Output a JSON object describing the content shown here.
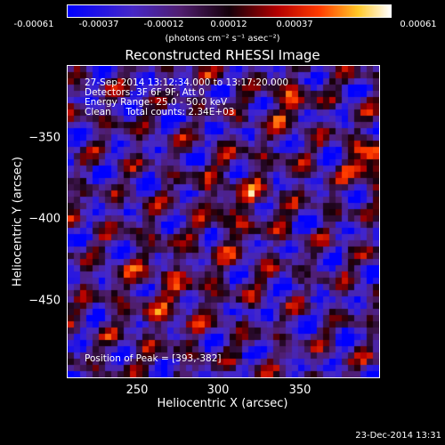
{
  "colorbar": {
    "ticks": [
      "-0.00061",
      "-0.00037",
      "-0.00012",
      "0.00012",
      "0.00037",
      "0.00061"
    ],
    "units": "(photons cm⁻² s⁻¹ asec⁻²)"
  },
  "plot": {
    "title": "Reconstructed RHESSI Image",
    "xlabel": "Heliocentric X (arcsec)",
    "ylabel": "Heliocentric Y (arcsec)",
    "x_ticks": [
      "250",
      "300",
      "350"
    ],
    "y_ticks": [
      "−350",
      "−400",
      "−450"
    ]
  },
  "info": {
    "line1": "27-Sep-2014 13:12:34.000 to 13:17:20.000",
    "line2": "Detectors: 3F 6F 9F, Att 0",
    "line3": "Energy Range: 25.0 - 50.0 keV",
    "line4": "Clean     Total counts: 2.34E+03",
    "peak": "Position of Peak = [393,-382]"
  },
  "footer": {
    "timestamp": "23-Dec-2014 13:31"
  },
  "colors": {
    "low": "#0000ff",
    "mid": "#4a1a6e",
    "high": "#ff2a00",
    "peak": "#ffff80"
  }
}
